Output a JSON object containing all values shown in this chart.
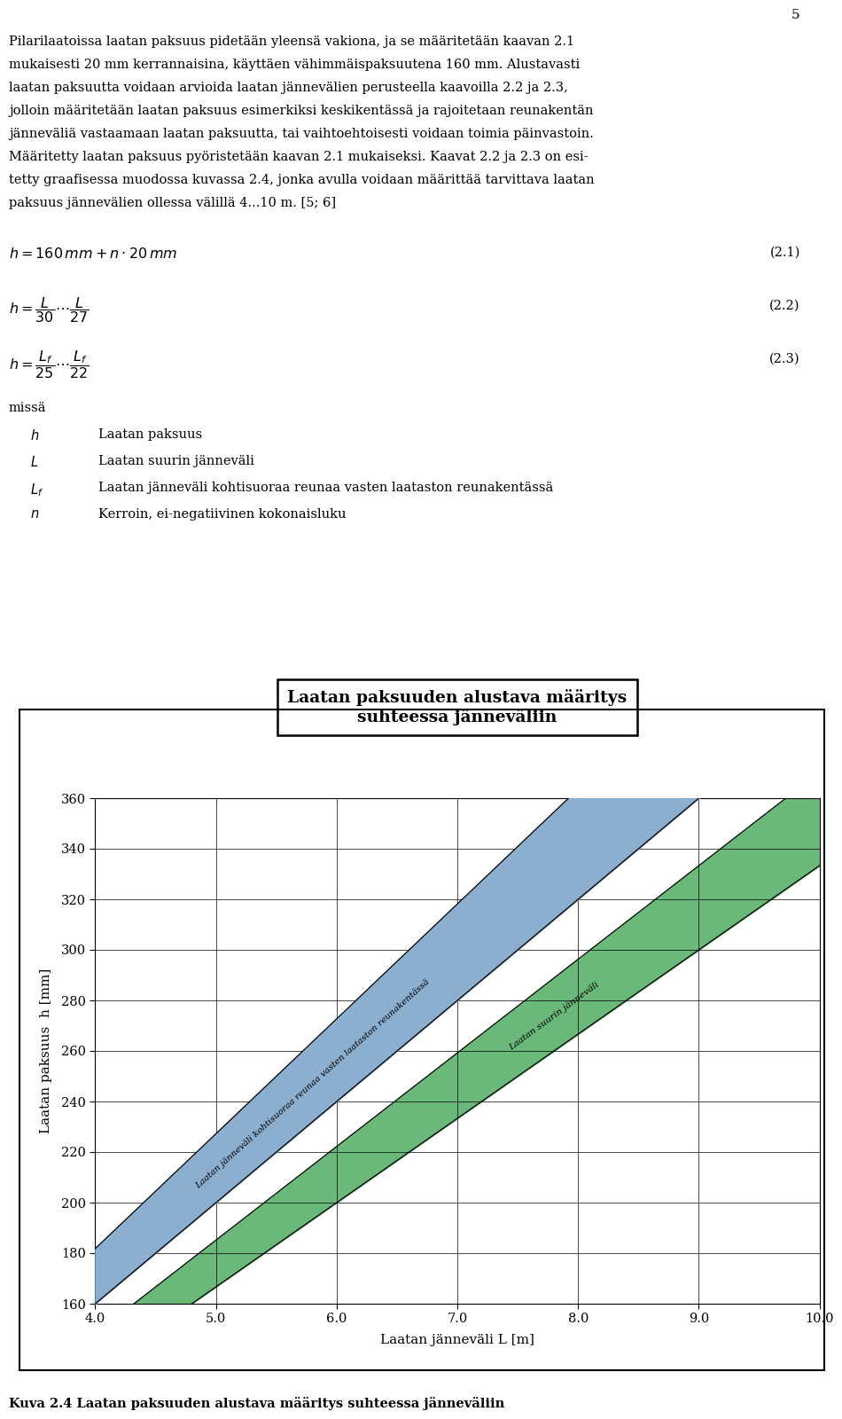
{
  "page_number": "5",
  "paragraph": "Pilarilaatoissa laatan paksuus pidetään yleensä vakiona, ja se määritetään kaavan 2.1 mukaisesti 20 mm kerrannaisina, käyttäen vähimmäispaksuutena 160 mm. Alustavasti laatan paksuutta voidaan arvioida laatan jännevälien perusteella kaavoilla 2.2 ja 2.3, jolloin määritetään laatan paksuus esimerkiksi keskikentässä ja rajoitetaan reunakentän jänneväliä vastaamaan laatan paksuutta, tai vaihtoehtoisesti voidaan toimia päinvastoin. Määritetty laatan paksuus pyöristetään kaavan 2.1 mukaiseksi. Kaavat 2.2 ja 2.3 on esitetty graafisessa muodossa kuvassa 2.4, jonka avulla voidaan määrittää tarvittava laatan paksuus jännevälien ollessa välillä 4...10 m. [5; 6]",
  "para_lines": [
    "Pilarilaatoissa laatan paksuus pidetään yleensä vakiona, ja se määritetään kaavan 2.1",
    "mukaisesti 20 mm kerrannaisina, käyttäen vähimmäispaksuutena 160 mm. Alustavasti",
    "laatan paksuutta voidaan arvioida laatan jännevälien perusteella kaavoilla 2.2 ja 2.3,",
    "jolloin määritetään laatan paksuus esimerkiksi keskikentässä ja rajoitetaan reunakentän",
    "jänneväliä vastaamaan laatan paksuutta, tai vaihtoehtoisesti voidaan toimia päinvastoin.",
    "Määritetty laatan paksuus pyöristetään kaavan 2.1 mukaiseksi. Kaavat 2.2 ja 2.3 on esi-",
    "tetty graafisessa muodossa kuvassa 2.4, jonka avulla voidaan määrittää tarvittava laatan",
    "paksuus jännevälien ollessa välillä 4...10 m. [5; 6]"
  ],
  "eq1_num": "(2.1)",
  "eq2_num": "(2.2)",
  "eq3_num": "(2.3)",
  "missa": "missä",
  "var_syms": [
    "h",
    "L",
    "L_f",
    "n"
  ],
  "var_descs": [
    "Laatan paksuus",
    "Laatan suurin jänneväli",
    "Laatan jänneväli kohtisuoraa reunaa vasten laataston reunakentässä",
    "Kerroin, ei-negatiivinen kokonaisluku"
  ],
  "chart_title": "Laatan paksuuden alustava määritys\nsuhteessa jänneväliin",
  "xlabel": "Laatan jänneväli L [m]",
  "ylabel": "Laatan paksuus  h [mm]",
  "xmin": 4.0,
  "xmax": 10.0,
  "ymin": 160,
  "ymax": 360,
  "xticks": [
    4.0,
    5.0,
    6.0,
    7.0,
    8.0,
    9.0,
    10.0
  ],
  "yticks": [
    160,
    180,
    200,
    220,
    240,
    260,
    280,
    300,
    320,
    340,
    360
  ],
  "blue_color": "#8caecf",
  "green_color": "#6ab87a",
  "blue_label": "Laatan jänneväli kohtisuoraa reunaa vasten laataston reunakentässä",
  "green_label": "Laatan suurin jänneväli",
  "caption": "Kuva 2.4 Laatan paksuuden alustava määritys suhteessa jänneväliin",
  "bg_color": "#ffffff"
}
